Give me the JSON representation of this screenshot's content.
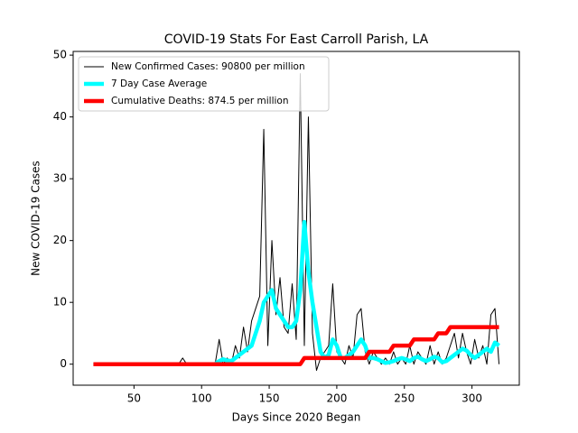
{
  "chart_data": {
    "type": "line",
    "title": "COVID-19 Stats For East Carroll Parish, LA",
    "x_label": "Days Since 2020 Began",
    "y_label": "New COVID-19 Cases",
    "x": [
      20,
      23,
      26,
      29,
      32,
      35,
      38,
      41,
      44,
      47,
      50,
      53,
      56,
      59,
      62,
      65,
      68,
      71,
      74,
      77,
      80,
      83,
      86,
      89,
      92,
      95,
      98,
      101,
      104,
      107,
      110,
      113,
      116,
      119,
      122,
      125,
      128,
      131,
      134,
      137,
      140,
      143,
      146,
      149,
      152,
      155,
      158,
      161,
      164,
      167,
      170,
      173,
      176,
      179,
      182,
      185,
      188,
      191,
      194,
      197,
      200,
      203,
      206,
      209,
      212,
      215,
      218,
      221,
      224,
      227,
      230,
      233,
      236,
      239,
      242,
      245,
      248,
      251,
      254,
      257,
      260,
      263,
      266,
      269,
      272,
      275,
      278,
      281,
      284,
      287,
      290,
      293,
      296,
      299,
      302,
      305,
      308,
      311,
      314,
      317,
      320
    ],
    "series": [
      {
        "name": "New Confirmed Cases: 90800 per million",
        "color": "#000000",
        "values": [
          0,
          0,
          0,
          0,
          0,
          0,
          0,
          0,
          0,
          0,
          0,
          0,
          0,
          0,
          0,
          0,
          0,
          0,
          0,
          0,
          0,
          0,
          1,
          0,
          0,
          0,
          0,
          0,
          0,
          0,
          0,
          4,
          0,
          1,
          0,
          3,
          1,
          6,
          2,
          7,
          9,
          11,
          38,
          3,
          20,
          8,
          14,
          6,
          5,
          13,
          4,
          47,
          3,
          40,
          5,
          -1,
          1,
          2,
          3,
          13,
          2,
          1,
          0,
          3,
          1,
          8,
          9,
          2,
          0,
          2,
          1,
          0,
          1,
          0,
          2,
          0,
          1,
          0,
          3,
          0,
          2,
          1,
          0,
          3,
          0,
          2,
          0,
          1,
          3,
          5,
          1,
          5,
          2,
          0,
          4,
          1,
          3,
          0,
          8,
          9,
          0
        ]
      },
      {
        "name": "7 Day Case Average",
        "color": "#00ffff",
        "values": [
          0,
          0,
          0,
          0,
          0,
          0,
          0,
          0,
          0,
          0,
          0,
          0,
          0,
          0,
          0,
          0,
          0,
          0,
          0,
          0,
          0,
          0,
          0,
          0,
          0,
          0,
          0,
          0,
          0,
          0,
          0,
          0.5,
          0.8,
          0.6,
          0.5,
          1,
          1.5,
          2,
          2.5,
          3,
          5,
          7,
          10,
          11,
          12,
          9,
          8,
          7,
          6,
          6,
          7,
          12,
          23,
          15,
          10,
          6,
          2,
          1,
          1.5,
          4,
          3,
          1,
          1,
          1.5,
          2,
          3,
          4,
          3,
          1,
          1,
          0.8,
          0.5,
          0.2,
          0.3,
          0.5,
          0.8,
          1,
          0.8,
          0.5,
          1,
          1.2,
          0.8,
          0.5,
          0.8,
          1.2,
          1,
          0.3,
          0.5,
          1,
          1.5,
          2,
          2.5,
          2.2,
          1.5,
          1,
          1.5,
          2,
          2.5,
          2,
          3.5,
          3
        ]
      },
      {
        "name": "Cumulative Deaths: 874.5 per million",
        "color": "#ff0000",
        "values": [
          0,
          0,
          0,
          0,
          0,
          0,
          0,
          0,
          0,
          0,
          0,
          0,
          0,
          0,
          0,
          0,
          0,
          0,
          0,
          0,
          0,
          0,
          0,
          0,
          0,
          0,
          0,
          0,
          0,
          0,
          0,
          0,
          0,
          0,
          0,
          0,
          0,
          0,
          0,
          0,
          0,
          0,
          0,
          0,
          0,
          0,
          0,
          0,
          0,
          0,
          0,
          0,
          1,
          1,
          1,
          1,
          1,
          1,
          1,
          1,
          1,
          1,
          1,
          1,
          1,
          1,
          1,
          1,
          2,
          2,
          2,
          2,
          2,
          2,
          3,
          3,
          3,
          3,
          3,
          4,
          4,
          4,
          4,
          4,
          4,
          5,
          5,
          5,
          6,
          6,
          6,
          6,
          6,
          6,
          6,
          6,
          6,
          6,
          6,
          6,
          6
        ]
      }
    ],
    "xlim": [
      5,
      335
    ],
    "ylim": [
      -3.4,
      50.6
    ],
    "xticks": [
      50,
      100,
      150,
      200,
      250,
      300
    ],
    "yticks": [
      0,
      10,
      20,
      30,
      40,
      50
    ],
    "legend": "upper left"
  }
}
